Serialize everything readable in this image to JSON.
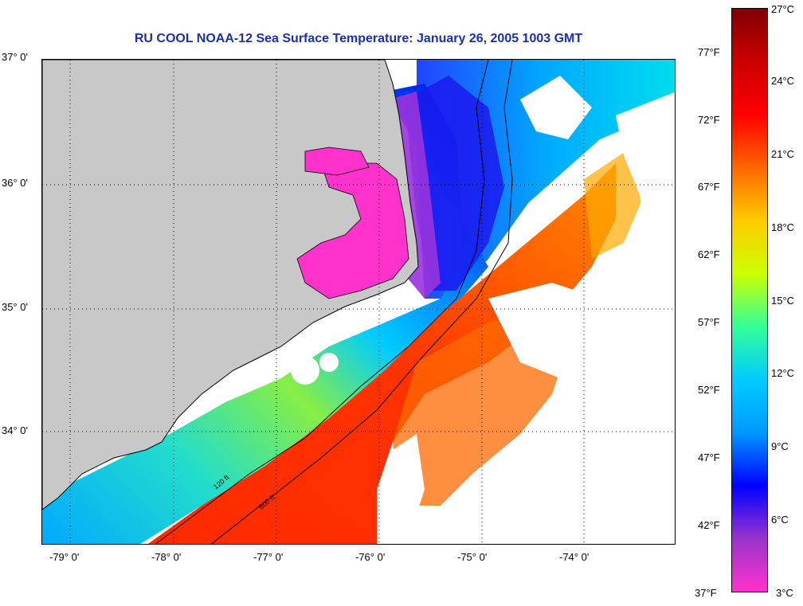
{
  "title": "RU COOL  NOAA-12  Sea Surface Temperature:  January 26, 2005 1003 GMT",
  "map": {
    "latitude_labels": [
      "37° 0'",
      "36° 0'",
      "35° 0'",
      "34° 0'"
    ],
    "longitude_labels": [
      "-79° 0'",
      "-78° 0'",
      "-77° 0'",
      "-76° 0'",
      "-75° 0'",
      "-74° 0'"
    ],
    "contour_labels": [
      "120 ft",
      "600 ft"
    ],
    "colors": {
      "land": "#c8c8c8",
      "cloud": "#ffffff"
    }
  },
  "colorbar": {
    "celsius_labels": [
      "27°C",
      "24°C",
      "21°C",
      "18°C",
      "15°C",
      "12°C",
      "9°C",
      "6°C",
      "3°C"
    ],
    "fahrenheit_labels": [
      "77°F",
      "72°F",
      "67°F",
      "62°F",
      "57°F",
      "52°F",
      "47°F",
      "42°F",
      "37°F"
    ],
    "range_celsius": [
      3,
      27
    ],
    "colors_low_to_high": [
      "#ff33cc",
      "#9933cc",
      "#0000ff",
      "#0099ff",
      "#00ccff",
      "#33ff99",
      "#ccff00",
      "#ffcc00",
      "#ff6600",
      "#ff0000",
      "#cc0000",
      "#800000"
    ]
  }
}
